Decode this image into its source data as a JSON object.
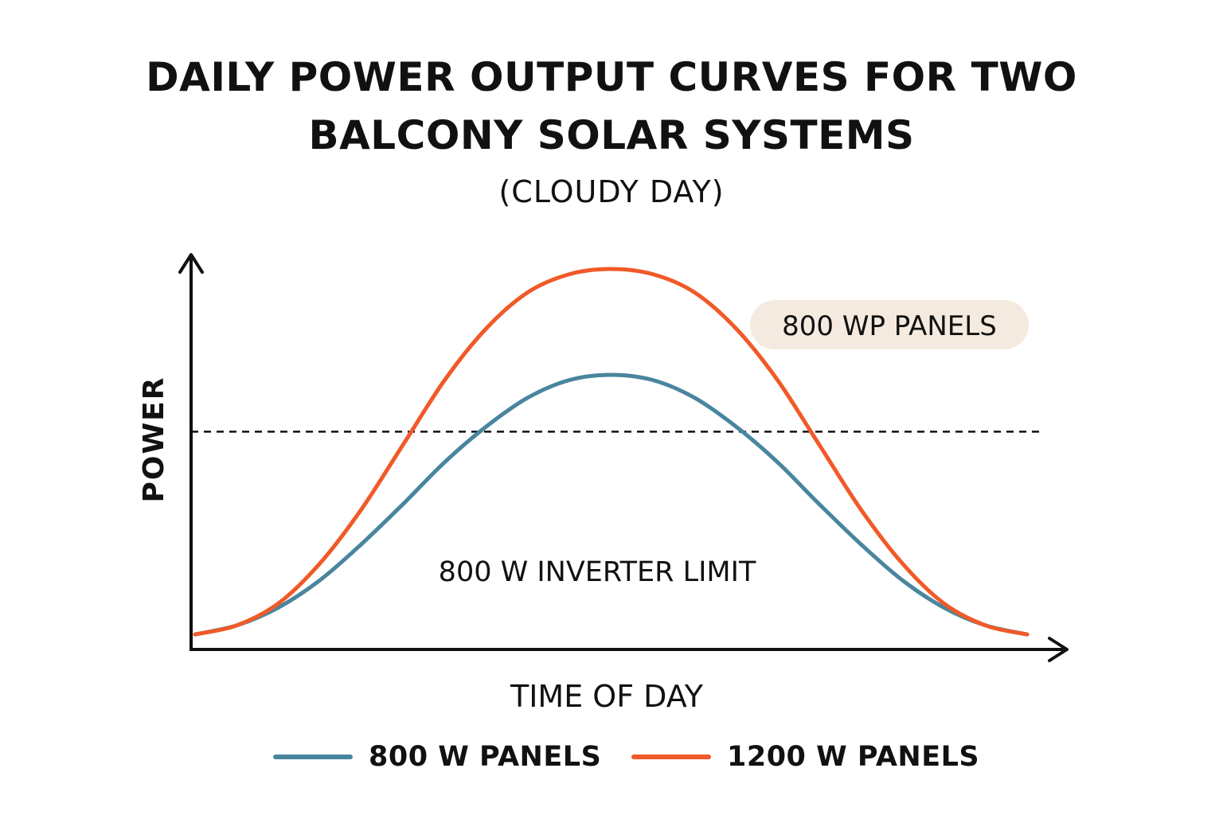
{
  "chart_data": {
    "type": "line",
    "title_lines": [
      "DAILY POWER OUTPUT CURVES FOR TWO",
      "BALCONY SOLAR SYSTEMS"
    ],
    "subtitle": "(CLOUDY DAY)",
    "xlabel": "TIME OF DAY",
    "ylabel": "POWER",
    "xlim": [
      0,
      1
    ],
    "ylim": [
      0,
      1400
    ],
    "series": [
      {
        "name": "800 W PANELS",
        "color": "#4a859e",
        "x": [
          0,
          0.05,
          0.1,
          0.15,
          0.2,
          0.25,
          0.3,
          0.35,
          0.4,
          0.45,
          0.5,
          0.55,
          0.6,
          0.65,
          0.7,
          0.75,
          0.8,
          0.85,
          0.9,
          0.95,
          1
        ],
        "values": [
          15,
          50,
          119,
          225,
          365,
          520,
          682,
          820,
          932,
          1000,
          1020,
          1000,
          932,
          820,
          682,
          520,
          365,
          225,
          119,
          50,
          15
        ]
      },
      {
        "name": "1200 W PANELS",
        "color": "#f05a28",
        "x": [
          0,
          0.05,
          0.1,
          0.15,
          0.2,
          0.25,
          0.3,
          0.35,
          0.4,
          0.45,
          0.5,
          0.55,
          0.6,
          0.65,
          0.7,
          0.75,
          0.8,
          0.85,
          0.9,
          0.95,
          1
        ],
        "values": [
          15,
          50,
          135,
          290,
          500,
          750,
          1000,
          1200,
          1340,
          1410,
          1430,
          1410,
          1340,
          1200,
          1000,
          750,
          500,
          290,
          135,
          50,
          15
        ]
      }
    ],
    "reference_line": {
      "value": 800,
      "style": "dashed",
      "label": "800 W INVERTER LIMIT"
    },
    "annotation": {
      "text": "800 WP PANELS",
      "position": "top-right",
      "background": "#f5eadf"
    },
    "legend": {
      "position": "bottom",
      "entries": [
        "800 W PANELS",
        "1200 W PANELS"
      ]
    },
    "grid": false
  }
}
